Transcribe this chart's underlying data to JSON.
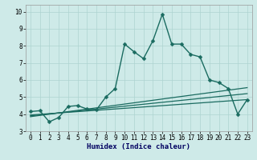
{
  "xlabel": "Humidex (Indice chaleur)",
  "ylabel": "",
  "bg_color": "#ceeae8",
  "grid_color": "#add4d0",
  "line_color": "#1a6b60",
  "xlim": [
    -0.5,
    23.5
  ],
  "ylim": [
    3.0,
    10.4
  ],
  "yticks": [
    3,
    4,
    5,
    6,
    7,
    8,
    9,
    10
  ],
  "xticks": [
    0,
    1,
    2,
    3,
    4,
    5,
    6,
    7,
    8,
    9,
    10,
    11,
    12,
    13,
    14,
    15,
    16,
    17,
    18,
    19,
    20,
    21,
    22,
    23
  ],
  "series": [
    {
      "x": [
        0,
        1,
        2,
        3,
        4,
        5,
        6,
        7,
        8,
        9,
        10,
        11,
        12,
        13,
        14,
        15,
        16,
        17,
        18,
        19,
        20,
        21,
        22,
        23
      ],
      "y": [
        4.15,
        4.2,
        3.55,
        3.8,
        4.45,
        4.5,
        4.3,
        4.25,
        5.0,
        5.5,
        8.1,
        7.65,
        7.25,
        8.3,
        9.85,
        8.1,
        8.1,
        7.5,
        7.35,
        6.0,
        5.85,
        5.5,
        4.0,
        4.85
      ],
      "marker": "D",
      "markersize": 2.5,
      "linewidth": 1.0
    },
    {
      "x": [
        0,
        23
      ],
      "y": [
        3.85,
        5.55
      ],
      "marker": null,
      "markersize": 0,
      "linewidth": 0.9
    },
    {
      "x": [
        0,
        23
      ],
      "y": [
        3.9,
        5.2
      ],
      "marker": null,
      "markersize": 0,
      "linewidth": 0.9
    },
    {
      "x": [
        0,
        23
      ],
      "y": [
        3.95,
        4.85
      ],
      "marker": null,
      "markersize": 0,
      "linewidth": 0.9
    }
  ],
  "tick_fontsize": 5.5,
  "xlabel_fontsize": 6.5,
  "xlabel_fontweight": "bold",
  "xlabel_color": "#000060"
}
